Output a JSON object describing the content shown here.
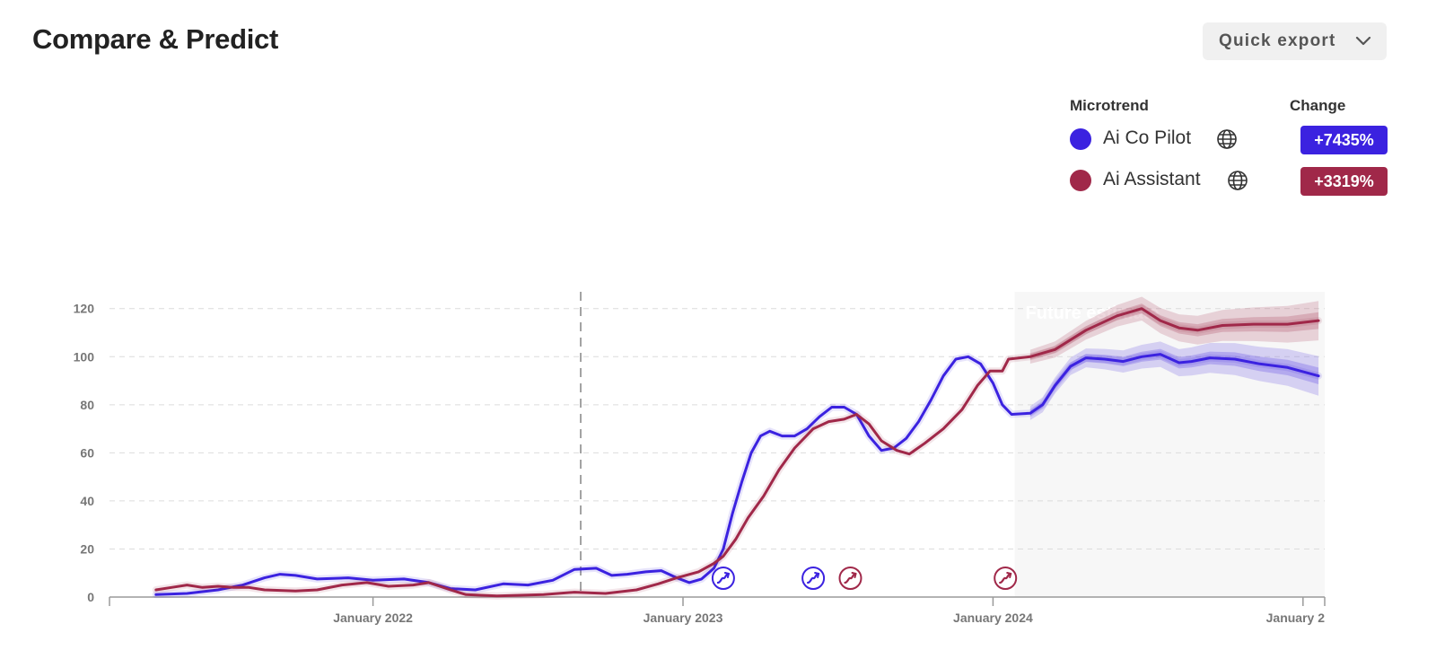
{
  "header": {
    "title": "Compare & Predict",
    "export_label": "Quick export"
  },
  "legend": {
    "microtrend_header": "Microtrend",
    "change_header": "Change",
    "items": [
      {
        "name": "Ai Co Pilot",
        "change": "+7435%",
        "color": "#3b22e0"
      },
      {
        "name": "Ai Assistant",
        "change": "+3319%",
        "color": "#a02849"
      }
    ]
  },
  "chart_data": {
    "type": "line",
    "x_tick_labels": [
      "January 2022",
      "January 2023",
      "January 2024",
      "January 2"
    ],
    "y_ticks": [
      0,
      20,
      40,
      60,
      80,
      100,
      120
    ],
    "ylim": [
      0,
      127
    ],
    "xlim": [
      2021.15,
      2025.07
    ],
    "grid": true,
    "forecast_label": "Future estimate",
    "forecast_start": 2024.07,
    "reference_line_x": 2022.67,
    "series": [
      {
        "name": "Ai Co Pilot",
        "color": "#3b22e0",
        "points": [
          [
            2021.3,
            1
          ],
          [
            2021.4,
            1.5
          ],
          [
            2021.5,
            3
          ],
          [
            2021.58,
            5
          ],
          [
            2021.65,
            8
          ],
          [
            2021.7,
            9.5
          ],
          [
            2021.75,
            9
          ],
          [
            2021.82,
            7.5
          ],
          [
            2021.92,
            8
          ],
          [
            2022.0,
            7
          ],
          [
            2022.1,
            7.5
          ],
          [
            2022.18,
            6
          ],
          [
            2022.25,
            3.5
          ],
          [
            2022.33,
            3
          ],
          [
            2022.42,
            5.5
          ],
          [
            2022.5,
            5
          ],
          [
            2022.58,
            7
          ],
          [
            2022.65,
            11.5
          ],
          [
            2022.72,
            12
          ],
          [
            2022.77,
            9
          ],
          [
            2022.82,
            9.5
          ],
          [
            2022.88,
            10.5
          ],
          [
            2022.93,
            11
          ],
          [
            2022.98,
            8
          ],
          [
            2023.02,
            6
          ],
          [
            2023.06,
            7.5
          ],
          [
            2023.1,
            12
          ],
          [
            2023.13,
            20
          ],
          [
            2023.16,
            35
          ],
          [
            2023.19,
            48
          ],
          [
            2023.22,
            60
          ],
          [
            2023.25,
            67
          ],
          [
            2023.28,
            69
          ],
          [
            2023.32,
            67
          ],
          [
            2023.36,
            67
          ],
          [
            2023.4,
            70
          ],
          [
            2023.44,
            75
          ],
          [
            2023.48,
            79
          ],
          [
            2023.52,
            79
          ],
          [
            2023.56,
            76
          ],
          [
            2023.6,
            67
          ],
          [
            2023.64,
            61
          ],
          [
            2023.68,
            62
          ],
          [
            2023.72,
            66
          ],
          [
            2023.76,
            73
          ],
          [
            2023.8,
            82
          ],
          [
            2023.84,
            92
          ],
          [
            2023.88,
            99
          ],
          [
            2023.92,
            100
          ],
          [
            2023.96,
            97
          ],
          [
            2024.0,
            89
          ],
          [
            2024.03,
            80
          ],
          [
            2024.06,
            76
          ],
          [
            2024.12,
            76.5
          ],
          [
            2024.16,
            80
          ],
          [
            2024.2,
            88
          ],
          [
            2024.25,
            96
          ],
          [
            2024.3,
            99.5
          ],
          [
            2024.36,
            99
          ],
          [
            2024.42,
            98
          ],
          [
            2024.48,
            100
          ],
          [
            2024.54,
            101
          ],
          [
            2024.6,
            97.5
          ],
          [
            2024.64,
            98
          ],
          [
            2024.7,
            99.5
          ],
          [
            2024.78,
            99
          ],
          [
            2024.86,
            97
          ],
          [
            2024.95,
            95.5
          ],
          [
            2025.05,
            92
          ]
        ]
      },
      {
        "name": "Ai Assistant",
        "color": "#a02849",
        "points": [
          [
            2021.3,
            3
          ],
          [
            2021.35,
            4
          ],
          [
            2021.4,
            5
          ],
          [
            2021.45,
            4
          ],
          [
            2021.5,
            4.5
          ],
          [
            2021.55,
            4
          ],
          [
            2021.6,
            4
          ],
          [
            2021.65,
            3
          ],
          [
            2021.75,
            2.5
          ],
          [
            2021.82,
            3
          ],
          [
            2021.9,
            5
          ],
          [
            2021.98,
            6
          ],
          [
            2022.05,
            4.5
          ],
          [
            2022.13,
            5
          ],
          [
            2022.18,
            6
          ],
          [
            2022.25,
            3
          ],
          [
            2022.3,
            1
          ],
          [
            2022.4,
            0.5
          ],
          [
            2022.55,
            1
          ],
          [
            2022.65,
            2
          ],
          [
            2022.75,
            1.5
          ],
          [
            2022.85,
            3
          ],
          [
            2022.92,
            5.5
          ],
          [
            2022.98,
            8
          ],
          [
            2023.05,
            10.5
          ],
          [
            2023.1,
            14
          ],
          [
            2023.13,
            17
          ],
          [
            2023.17,
            24
          ],
          [
            2023.21,
            33
          ],
          [
            2023.26,
            42
          ],
          [
            2023.31,
            53
          ],
          [
            2023.36,
            62
          ],
          [
            2023.42,
            70
          ],
          [
            2023.47,
            73
          ],
          [
            2023.52,
            74
          ],
          [
            2023.56,
            76
          ],
          [
            2023.6,
            72
          ],
          [
            2023.64,
            65
          ],
          [
            2023.69,
            61
          ],
          [
            2023.73,
            59.5
          ],
          [
            2023.78,
            64
          ],
          [
            2023.84,
            70
          ],
          [
            2023.9,
            78
          ],
          [
            2023.95,
            88
          ],
          [
            2023.99,
            94
          ],
          [
            2024.03,
            94
          ],
          [
            2024.05,
            99
          ],
          [
            2024.12,
            100
          ],
          [
            2024.2,
            103
          ],
          [
            2024.3,
            111
          ],
          [
            2024.4,
            117
          ],
          [
            2024.48,
            120
          ],
          [
            2024.54,
            115
          ],
          [
            2024.6,
            112
          ],
          [
            2024.66,
            111
          ],
          [
            2024.74,
            113
          ],
          [
            2024.84,
            113.5
          ],
          [
            2024.95,
            113.5
          ],
          [
            2025.05,
            115
          ]
        ]
      }
    ]
  }
}
